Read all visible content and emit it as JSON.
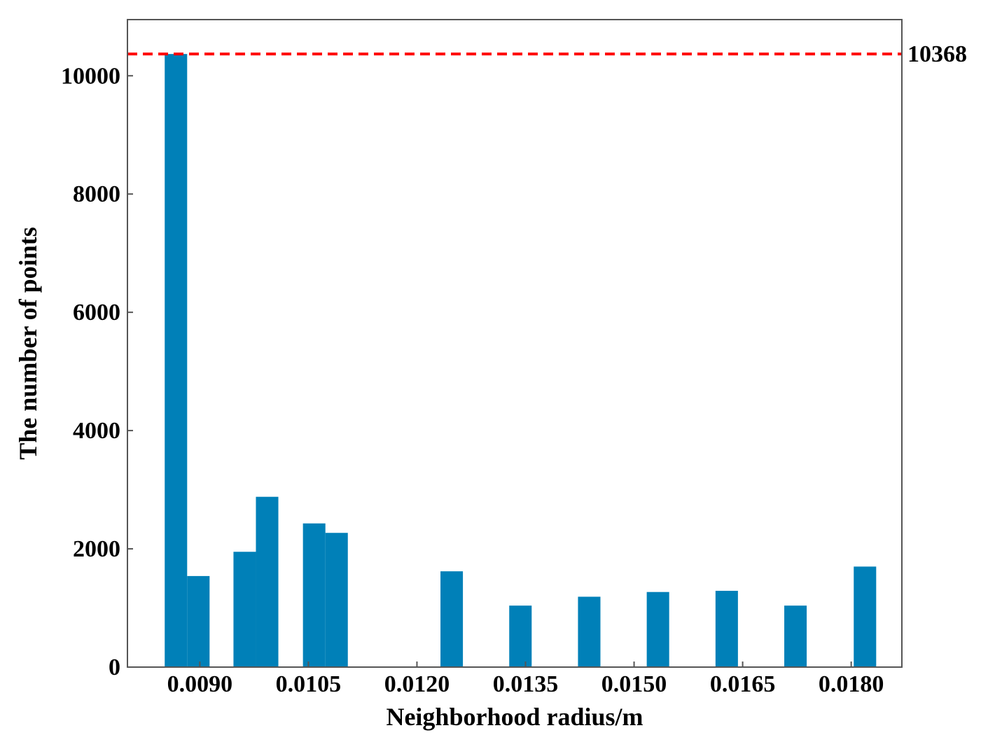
{
  "chart_data": {
    "type": "bar",
    "title": "",
    "xlabel": "Neighborhood radius/m",
    "ylabel": "The number of points",
    "xlim": [
      0.008,
      0.0187
    ],
    "ylim": [
      0,
      10950
    ],
    "x_ticks": [
      0.009,
      0.0105,
      0.012,
      0.0135,
      0.015,
      0.0165,
      0.018
    ],
    "x_tick_labels": [
      "0.0090",
      "0.0105",
      "0.0120",
      "0.0135",
      "0.0150",
      "0.0165",
      "0.0180"
    ],
    "y_ticks": [
      0,
      2000,
      4000,
      6000,
      8000,
      10000
    ],
    "y_tick_labels": [
      "0",
      "2000",
      "4000",
      "6000",
      "8000",
      "10000"
    ],
    "bar_width": 0.00031,
    "bars": [
      {
        "x": 0.00867,
        "value": 10368
      },
      {
        "x": 0.00898,
        "value": 1540
      },
      {
        "x": 0.00962,
        "value": 1950
      },
      {
        "x": 0.00993,
        "value": 2880
      },
      {
        "x": 0.01058,
        "value": 2430
      },
      {
        "x": 0.01089,
        "value": 2270
      },
      {
        "x": 0.01248,
        "value": 1620
      },
      {
        "x": 0.01343,
        "value": 1040
      },
      {
        "x": 0.01438,
        "value": 1190
      },
      {
        "x": 0.01533,
        "value": 1270
      },
      {
        "x": 0.01628,
        "value": 1290
      },
      {
        "x": 0.01723,
        "value": 1040
      },
      {
        "x": 0.01819,
        "value": 1700
      }
    ],
    "reference_line": {
      "value": 10368,
      "label": "10368",
      "color": "#ff0000",
      "style": "dashed"
    },
    "bar_color": "#0080b8",
    "grid": false,
    "legend": "none"
  }
}
